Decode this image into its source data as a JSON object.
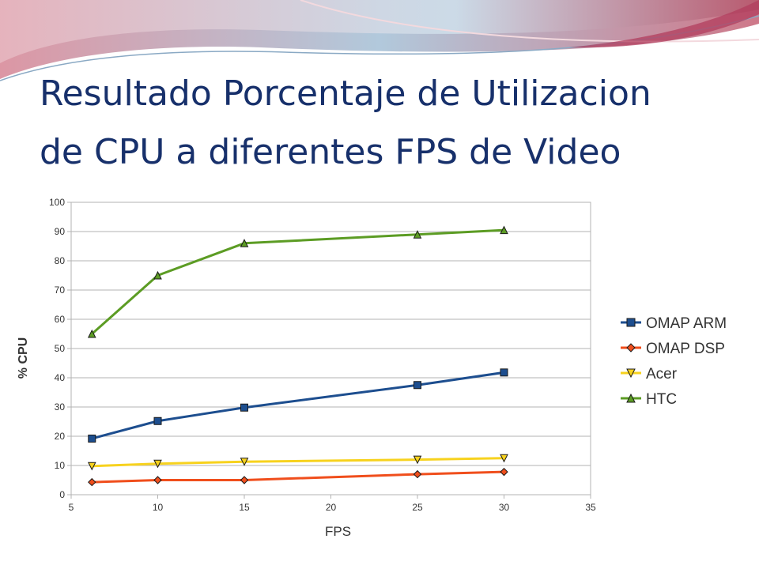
{
  "slide": {
    "title_line1": "Resultado Porcentaje de Utilizacion",
    "title_line2": "de CPU a diferentes FPS de Video",
    "title_color": "#17306b"
  },
  "chart_data": {
    "type": "line",
    "title": "",
    "xlabel": "FPS",
    "ylabel": "% CPU",
    "xlim": [
      5,
      35
    ],
    "ylim": [
      0,
      100
    ],
    "x_ticks": [
      5,
      10,
      15,
      20,
      25,
      30,
      35
    ],
    "y_ticks": [
      0,
      10,
      20,
      30,
      40,
      50,
      60,
      70,
      80,
      90,
      100
    ],
    "grid": true,
    "legend_position": "right",
    "series": [
      {
        "name": "OMAP ARM",
        "color": "#1d4e8f",
        "marker": "square",
        "x": [
          6.2,
          10,
          15,
          25,
          30
        ],
        "values": [
          19.2,
          25.2,
          29.8,
          37.5,
          41.8
        ]
      },
      {
        "name": "OMAP DSP",
        "color": "#f04e1c",
        "marker": "diamond",
        "x": [
          6.2,
          10,
          15,
          25,
          30
        ],
        "values": [
          4.3,
          5.0,
          5.0,
          7.0,
          7.8
        ]
      },
      {
        "name": "Acer",
        "color": "#f7d21e",
        "marker": "triangle-down",
        "x": [
          6.2,
          10,
          15,
          25,
          30
        ],
        "values": [
          9.8,
          10.6,
          11.3,
          12.0,
          12.5
        ]
      },
      {
        "name": "HTC",
        "color": "#5c9c24",
        "marker": "triangle-up",
        "x": [
          6.2,
          10,
          15,
          25,
          30
        ],
        "values": [
          55.0,
          75.0,
          86.0,
          89.0,
          90.5
        ]
      }
    ]
  }
}
